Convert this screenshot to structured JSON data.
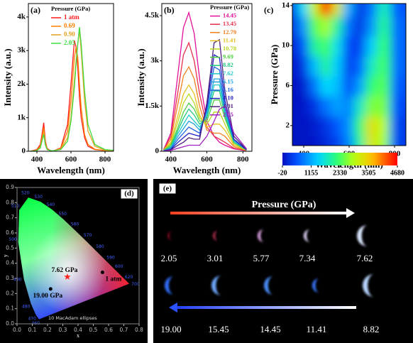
{
  "chart_data": [
    {
      "type": "line",
      "label": "(a)",
      "xlabel": "Wavelength (nm)",
      "ylabel": "Intensity (a.u.)",
      "legend_title": "Pressure (GPa)",
      "x": [
        360,
        400,
        420,
        430,
        440,
        450,
        460,
        480,
        500,
        540,
        580,
        600,
        620,
        630,
        640,
        650,
        660,
        680,
        700,
        740,
        800,
        850
      ],
      "xlim": [
        350,
        850
      ],
      "xticks": [
        400,
        600,
        800
      ],
      "ylim": [
        0,
        4400
      ],
      "yticks": [
        0,
        {
          "value": 1000,
          "label": "1k"
        },
        {
          "value": 2000,
          "label": "2k"
        },
        {
          "value": 3000,
          "label": "3k"
        },
        {
          "value": 4000,
          "label": "4k"
        }
      ],
      "series": [
        {
          "name": "1 atm",
          "color": "#ff1a1a",
          "values": [
            0,
            50,
            200,
            500,
            850,
            300,
            80,
            20,
            20,
            100,
            800,
            2000,
            3300,
            3100,
            2500,
            1600,
            1000,
            400,
            150,
            50,
            20,
            10
          ]
        },
        {
          "name": "0.69",
          "color": "#ff7f00",
          "values": [
            0,
            30,
            150,
            400,
            700,
            250,
            60,
            20,
            20,
            80,
            600,
            1500,
            2800,
            3100,
            2800,
            2000,
            1300,
            500,
            200,
            60,
            20,
            10
          ]
        },
        {
          "name": "0.90",
          "color": "#e8a020",
          "values": [
            0,
            20,
            120,
            350,
            600,
            200,
            50,
            20,
            20,
            60,
            400,
            1000,
            2100,
            2700,
            3200,
            3600,
            3000,
            1500,
            600,
            150,
            30,
            10
          ]
        },
        {
          "name": "2.05",
          "color": "#40dd40",
          "values": [
            0,
            20,
            100,
            300,
            500,
            180,
            50,
            20,
            20,
            50,
            300,
            900,
            1900,
            2600,
            3200,
            3700,
            3200,
            1800,
            800,
            200,
            50,
            30
          ]
        }
      ]
    },
    {
      "type": "line",
      "label": "(b)",
      "xlabel": "Wavelength (nm)",
      "ylabel": "Intensity (a.u.)",
      "legend_title": "Pressure (GPa)",
      "x": [
        360,
        400,
        440,
        470,
        500,
        530,
        560,
        600,
        640,
        670,
        700,
        750,
        820
      ],
      "xlim": [
        350,
        850
      ],
      "xticks": [
        400,
        600,
        800
      ],
      "ylim": [
        0,
        4900
      ],
      "yticks": [
        0,
        {
          "value": 1500,
          "label": "1.5k"
        },
        {
          "value": 3000,
          "label": "3k"
        },
        {
          "value": 4500,
          "label": "4.5k"
        }
      ],
      "series": [
        {
          "name": "14.45",
          "color": "#e0109a",
          "values": [
            50,
            600,
            2600,
            4100,
            4600,
            3900,
            2400,
            1000,
            500,
            300,
            200,
            80,
            20
          ]
        },
        {
          "name": "13.45",
          "color": "#e8304a",
          "values": [
            50,
            500,
            2000,
            3200,
            3600,
            3000,
            1900,
            800,
            500,
            400,
            300,
            100,
            20
          ]
        },
        {
          "name": "12.79",
          "color": "#f08020",
          "values": [
            40,
            400,
            1600,
            2500,
            2800,
            2400,
            1500,
            700,
            600,
            600,
            500,
            150,
            30
          ]
        },
        {
          "name": "11.41",
          "color": "#e8c020",
          "values": [
            30,
            300,
            1200,
            1900,
            2200,
            1900,
            1200,
            800,
            900,
            900,
            700,
            200,
            30
          ]
        },
        {
          "name": "10.78",
          "color": "#b8d820",
          "values": [
            30,
            250,
            1000,
            1600,
            1900,
            1600,
            1100,
            900,
            1300,
            1300,
            900,
            250,
            40
          ]
        },
        {
          "name": "9.69",
          "color": "#50d040",
          "values": [
            30,
            200,
            800,
            1300,
            1600,
            1400,
            1000,
            1000,
            1700,
            1700,
            1100,
            300,
            40
          ]
        },
        {
          "name": "8.82",
          "color": "#20c880",
          "values": [
            20,
            150,
            700,
            1100,
            1400,
            1200,
            900,
            1100,
            2000,
            2000,
            1200,
            300,
            40
          ]
        },
        {
          "name": "7.62",
          "color": "#20c8c8",
          "values": [
            20,
            120,
            600,
            900,
            1200,
            1000,
            800,
            1200,
            2200,
            2200,
            1300,
            350,
            50
          ]
        },
        {
          "name": "6.15",
          "color": "#20a0e0",
          "values": [
            20,
            100,
            500,
            750,
            1000,
            900,
            700,
            1300,
            2400,
            2400,
            1400,
            350,
            50
          ]
        },
        {
          "name": "5.16",
          "color": "#2060e0",
          "values": [
            20,
            80,
            400,
            600,
            800,
            700,
            600,
            1400,
            2800,
            2700,
            1500,
            400,
            50
          ]
        },
        {
          "name": "4.10",
          "color": "#2020c0",
          "values": [
            10,
            60,
            300,
            450,
            600,
            550,
            500,
            1500,
            3200,
            3100,
            1700,
            400,
            50
          ]
        },
        {
          "name": "3.01",
          "color": "#502080",
          "values": [
            10,
            50,
            200,
            300,
            450,
            400,
            400,
            1600,
            3600,
            3700,
            2000,
            500,
            60
          ]
        },
        {
          "name": "2.05",
          "color": "#a020c0",
          "values": [
            10,
            30,
            100,
            150,
            200,
            200,
            200,
            500,
            1000,
            1400,
            1500,
            600,
            80
          ]
        }
      ]
    },
    {
      "type": "contour",
      "label": "(c)",
      "xlabel": "Wavelength (nm)",
      "ylabel": "Pressure (GPa)",
      "x": [
        350,
        400,
        450,
        500,
        550,
        600,
        650,
        700,
        750,
        800,
        850
      ],
      "y": [
        0,
        2,
        4,
        6,
        8,
        10,
        12,
        14
      ],
      "z": [
        [
          0,
          10,
          50,
          200,
          400,
          900,
          2000,
          3200,
          2800,
          1600,
          400
        ],
        [
          0,
          20,
          100,
          300,
          600,
          1000,
          2200,
          3300,
          2900,
          1700,
          400
        ],
        [
          0,
          50,
          300,
          800,
          1100,
          900,
          1800,
          2600,
          2600,
          1800,
          500
        ],
        [
          20,
          100,
          800,
          1500,
          1300,
          500,
          1100,
          2200,
          2400,
          2000,
          600
        ],
        [
          50,
          300,
          1300,
          2000,
          1400,
          400,
          700,
          1800,
          2300,
          2100,
          700
        ],
        [
          100,
          600,
          2000,
          2300,
          1600,
          500,
          400,
          1400,
          2200,
          2100,
          700
        ],
        [
          200,
          1000,
          2400,
          2800,
          2000,
          800,
          300,
          1000,
          2000,
          2000,
          700
        ],
        [
          300,
          1500,
          3000,
          4600,
          3200,
          1200,
          300,
          800,
          1800,
          1800,
          600
        ]
      ],
      "xlim": [
        350,
        850
      ],
      "xticks": [
        400,
        600,
        800
      ],
      "ylim": [
        0,
        14.2
      ],
      "yticks": [
        2,
        6,
        10,
        14
      ],
      "clim": [
        -20,
        4680
      ],
      "cticks": [
        -20,
        1155,
        2330,
        3505,
        4680
      ]
    },
    {
      "type": "scatter",
      "label": "(d)",
      "xlabel": "x",
      "ylabel": "y",
      "xlim": [
        0,
        0.8
      ],
      "ylim": [
        0,
        0.9
      ],
      "xticks": [
        {
          "value": 0,
          "label": "0.0"
        },
        0.1,
        0.2,
        0.3,
        0.4,
        0.5,
        0.6,
        0.7,
        0.8
      ],
      "yticks": [
        {
          "value": 0,
          "label": "0.0"
        },
        0.1,
        0.2,
        0.3,
        0.4,
        0.5,
        0.6,
        0.7,
        0.8,
        0.9
      ],
      "locus": {
        "labels": [
          "460",
          "470",
          "480",
          "490",
          "500",
          "510",
          "520",
          "530",
          "540",
          "550",
          "560",
          "570",
          "580",
          "590",
          "600",
          "620",
          "700"
        ],
        "x": [
          0.144,
          0.124,
          0.091,
          0.045,
          0.008,
          0.014,
          0.074,
          0.155,
          0.23,
          0.302,
          0.373,
          0.444,
          0.512,
          0.575,
          0.627,
          0.691,
          0.735
        ],
        "y": [
          0.03,
          0.058,
          0.133,
          0.295,
          0.538,
          0.75,
          0.834,
          0.806,
          0.754,
          0.692,
          0.624,
          0.555,
          0.487,
          0.424,
          0.372,
          0.308,
          0.265
        ]
      },
      "points": {
        "names": [
          "1 atm",
          "7.62 GPa",
          "19.00 GPa"
        ],
        "x": [
          0.56,
          0.33,
          0.22
        ],
        "y": [
          0.34,
          0.31,
          0.23
        ],
        "colors": [
          "#000000",
          "#ff2020",
          "#000000"
        ]
      },
      "annotation": "10 MacAdam ellipses"
    }
  ],
  "panel_e": {
    "label": "(e)",
    "title": "Pressure (GPa)",
    "top": [
      "2.05",
      "3.01",
      "5.77",
      "7.34",
      "7.62"
    ],
    "bottom": [
      "19.00",
      "15.45",
      "14.45",
      "11.41",
      "8.82"
    ]
  }
}
